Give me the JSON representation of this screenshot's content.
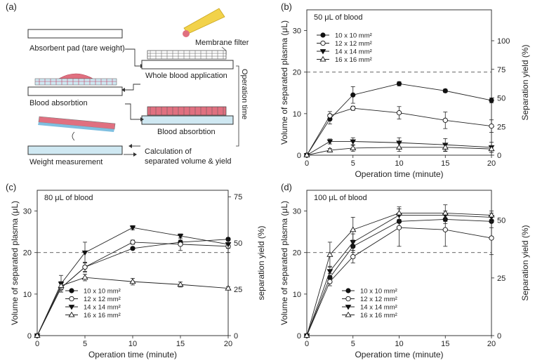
{
  "figure": {
    "panel_a": {
      "label": "(a)",
      "texts": {
        "absorbent_pad": "Absorbent pad (tare weight)",
        "membrane_filter": "Membrane filter",
        "whole_blood": "Whole blood application",
        "operation_time": "Operation time",
        "blood_absorption_left": "Blood absorbtion",
        "blood_absorption_right": "Blood absorbtion",
        "weight_measurement": "Weight measurement",
        "calc_line1": "Calculation of",
        "calc_line2": "separated volume & yield"
      },
      "colors": {
        "blood": "#e07080",
        "pad": "#cfe8f2",
        "membrane": "#333333",
        "pipette": "#f2d24a"
      }
    }
  },
  "chart_data": [
    {
      "type": "line",
      "panel": "(b)",
      "title": "50 μL of blood",
      "xlabel": "Operation time (minute)",
      "ylabel": "Volume of separated plasma (μL)",
      "y2label": "Separation yield (%)",
      "x": [
        0,
        2.5,
        5,
        10,
        15,
        20
      ],
      "xlim": [
        0,
        20
      ],
      "ylim": [
        0,
        35
      ],
      "xticks": [
        0,
        5,
        10,
        15,
        20
      ],
      "yticks": [
        0,
        10,
        20,
        30
      ],
      "y2ticks": [
        0,
        25,
        50,
        75,
        100
      ],
      "y2lim": [
        0,
        127
      ],
      "reference_line": 20,
      "legend_position": "top-left",
      "series": [
        {
          "name": "10 x 10 mm²",
          "marker": "circle-filled",
          "values": [
            0,
            8.7,
            14.5,
            17.2,
            15.5,
            13.2
          ],
          "errors": [
            0,
            1.2,
            2.0,
            0.5,
            0.4,
            0.6
          ]
        },
        {
          "name": "12 x 12 mm²",
          "marker": "circle-open",
          "values": [
            0,
            9.5,
            11.3,
            10.2,
            8.4,
            7.0
          ],
          "errors": [
            0,
            1.0,
            0.5,
            1.5,
            2.0,
            1.5
          ]
        },
        {
          "name": "14 x 14 mm²",
          "marker": "triangle-down-filled",
          "values": [
            0,
            3.3,
            3.3,
            3.0,
            2.5,
            1.9
          ],
          "errors": [
            0,
            0.6,
            0.9,
            1.2,
            1.5,
            1.2
          ]
        },
        {
          "name": "16 x 16 mm²",
          "marker": "triangle-up-open",
          "values": [
            0,
            1.2,
            1.7,
            1.9,
            1.9,
            1.5
          ],
          "errors": [
            0,
            0.4,
            0.8,
            1.0,
            1.0,
            0.8
          ]
        }
      ]
    },
    {
      "type": "line",
      "panel": "(c)",
      "title": "80 μL of blood",
      "xlabel": "Operation time (minute)",
      "ylabel": "Volume of separated plasma (μL)",
      "y2label": "separation yield (%)",
      "x": [
        0,
        2.5,
        5,
        10,
        15,
        20
      ],
      "xlim": [
        0,
        20
      ],
      "ylim": [
        0,
        35
      ],
      "xticks": [
        0,
        5,
        10,
        15,
        20
      ],
      "yticks": [
        0,
        10,
        20,
        30
      ],
      "y2ticks": [
        0,
        25,
        50,
        75
      ],
      "y2lim": [
        0,
        78.5
      ],
      "reference_line": 20,
      "legend_position": "bottom-left",
      "series": [
        {
          "name": "10 x 10 mm²",
          "marker": "circle-filled",
          "values": [
            0,
            11.5,
            16.5,
            21.0,
            22.5,
            23.2
          ],
          "errors": [
            0,
            1.0,
            1.0,
            0.3,
            0.5,
            0.4
          ]
        },
        {
          "name": "12 x 12 mm²",
          "marker": "circle-open",
          "values": [
            0,
            11.5,
            16.5,
            22.5,
            22.0,
            21.5
          ],
          "errors": [
            0,
            1.0,
            1.2,
            0.5,
            1.5,
            1.5
          ]
        },
        {
          "name": "14 x 14 mm²",
          "marker": "triangle-down-filled",
          "values": [
            0,
            12.5,
            20.0,
            26.0,
            24.0,
            22.0
          ],
          "errors": [
            0,
            2.0,
            2.5,
            0.5,
            0.5,
            1.0
          ]
        },
        {
          "name": "16 x 16 mm²",
          "marker": "triangle-up-open",
          "values": [
            0,
            12.0,
            14.0,
            13.0,
            12.3,
            11.4
          ],
          "errors": [
            0,
            1.0,
            0.8,
            0.8,
            0.6,
            0.4
          ]
        }
      ]
    },
    {
      "type": "line",
      "panel": "(d)",
      "title": "100 μL of blood",
      "xlabel": "Operation time (minute)",
      "ylabel": "Volume of separated plasma (μL)",
      "y2label": "Separation yield (%)",
      "x": [
        0,
        2.5,
        5,
        10,
        15,
        20
      ],
      "xlim": [
        0,
        20
      ],
      "ylim": [
        0,
        35
      ],
      "xticks": [
        0,
        5,
        10,
        15,
        20
      ],
      "yticks": [
        0,
        10,
        20,
        30
      ],
      "y2ticks": [
        0,
        25,
        50
      ],
      "y2lim": [
        0,
        63
      ],
      "reference_line": 20,
      "legend_position": "bottom-right",
      "series": [
        {
          "name": "10 x 10 mm²",
          "marker": "circle-filled",
          "values": [
            0,
            14.0,
            21.5,
            27.5,
            28.0,
            27.5
          ],
          "errors": [
            0,
            1.0,
            1.5,
            1.5,
            1.0,
            1.5
          ]
        },
        {
          "name": "12 x 12 mm²",
          "marker": "circle-open",
          "values": [
            0,
            13.0,
            19.0,
            26.0,
            25.5,
            23.5
          ],
          "errors": [
            0,
            1.0,
            1.5,
            4.5,
            4.0,
            4.0
          ]
        },
        {
          "name": "14 x 14 mm²",
          "marker": "triangle-down-filled",
          "values": [
            0,
            15.5,
            22.5,
            29.0,
            29.0,
            28.5
          ],
          "errors": [
            0,
            1.2,
            2.0,
            1.5,
            1.0,
            1.0
          ]
        },
        {
          "name": "16 x 16 mm²",
          "marker": "triangle-up-open",
          "values": [
            0,
            19.5,
            25.5,
            29.5,
            29.5,
            29.0
          ],
          "errors": [
            0,
            3.0,
            3.0,
            1.5,
            2.0,
            1.0
          ]
        }
      ]
    }
  ]
}
